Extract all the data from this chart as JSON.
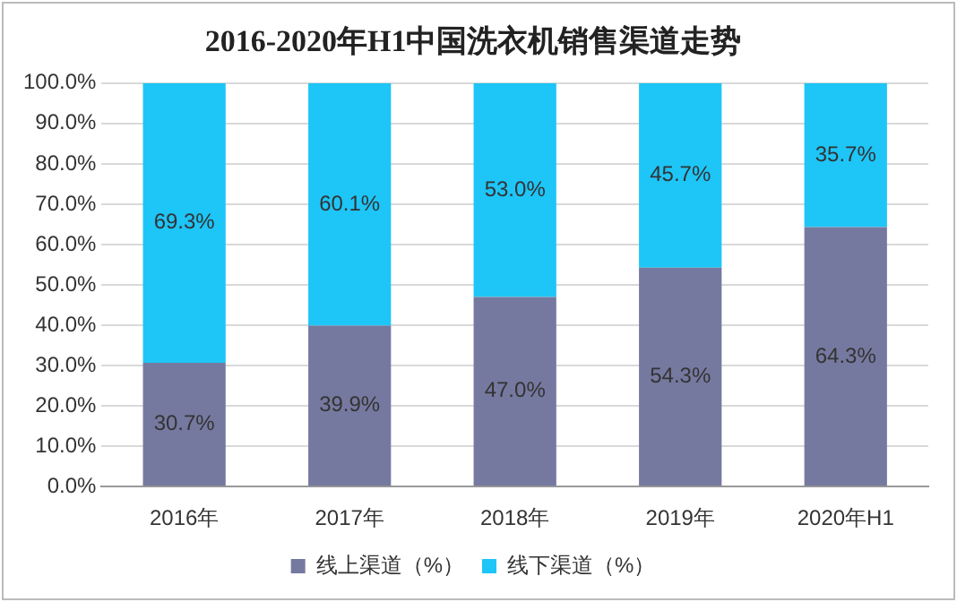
{
  "chart_data": {
    "type": "bar",
    "title": "2016-2020年H1中国洗衣机销售渠道走势",
    "categories": [
      "2016年",
      "2017年",
      "2018年",
      "2019年",
      "2020年H1"
    ],
    "stacked": true,
    "grid": "y",
    "legend": "bottom",
    "series": [
      {
        "name": "线上渠道（%）",
        "color": "#76799f",
        "values": [
          30.7,
          39.9,
          47.0,
          54.3,
          64.3
        ],
        "value_labels": [
          "30.7%",
          "39.9%",
          "47.0%",
          "54.3%",
          "64.3%"
        ]
      },
      {
        "name": "线下渠道（%）",
        "color": "#1ec5f7",
        "values": [
          69.3,
          60.1,
          53.0,
          45.7,
          35.7
        ],
        "value_labels": [
          "69.3%",
          "60.1%",
          "53.0%",
          "45.7%",
          "35.7%"
        ]
      }
    ],
    "ylim": [
      0,
      100
    ],
    "yticks": [
      {
        "value": 0,
        "label": "0.0%"
      },
      {
        "value": 10,
        "label": "10.0%"
      },
      {
        "value": 20,
        "label": "20.0%"
      },
      {
        "value": 30,
        "label": "30.0%"
      },
      {
        "value": 40,
        "label": "40.0%"
      },
      {
        "value": 50,
        "label": "50.0%"
      },
      {
        "value": 60,
        "label": "60.0%"
      },
      {
        "value": 70,
        "label": "70.0%"
      },
      {
        "value": 80,
        "label": "80.0%"
      },
      {
        "value": 90,
        "label": "90.0%"
      },
      {
        "value": 100,
        "label": "100.0%"
      }
    ]
  }
}
